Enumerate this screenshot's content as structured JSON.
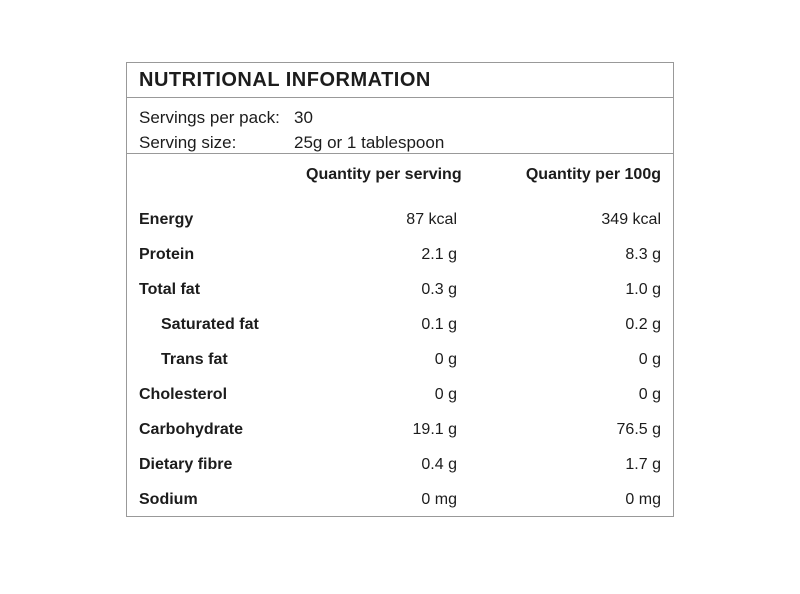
{
  "label": {
    "title": "NUTRITIONAL INFORMATION",
    "servings": {
      "per_pack_label": "Servings per pack:",
      "per_pack_value": "30",
      "size_label": "Serving size:",
      "size_value": "25g or 1 tablespoon"
    },
    "columns": {
      "per_serving": "Quantity per serving",
      "per_100g": "Quantity per 100g"
    },
    "rows": [
      {
        "name": "Energy",
        "indent": false,
        "per_serving": "87 kcal",
        "per_100g": "349 kcal"
      },
      {
        "name": "Protein",
        "indent": false,
        "per_serving": "2.1 g",
        "per_100g": "8.3 g"
      },
      {
        "name": "Total fat",
        "indent": false,
        "per_serving": "0.3 g",
        "per_100g": "1.0 g"
      },
      {
        "name": "Saturated fat",
        "indent": true,
        "per_serving": "0.1 g",
        "per_100g": "0.2 g"
      },
      {
        "name": "Trans fat",
        "indent": true,
        "per_serving": "0 g",
        "per_100g": "0 g"
      },
      {
        "name": "Cholesterol",
        "indent": false,
        "per_serving": "0 g",
        "per_100g": "0 g"
      },
      {
        "name": "Carbohydrate",
        "indent": false,
        "per_serving": "19.1 g",
        "per_100g": "76.5 g"
      },
      {
        "name": "Dietary fibre",
        "indent": false,
        "per_serving": "0.4 g",
        "per_100g": "1.7 g"
      },
      {
        "name": "Sodium",
        "indent": false,
        "per_serving": "0 mg",
        "per_100g": "0 mg"
      }
    ],
    "colors": {
      "border": "#999999",
      "text": "#1c1c1c",
      "background": "#ffffff"
    }
  }
}
